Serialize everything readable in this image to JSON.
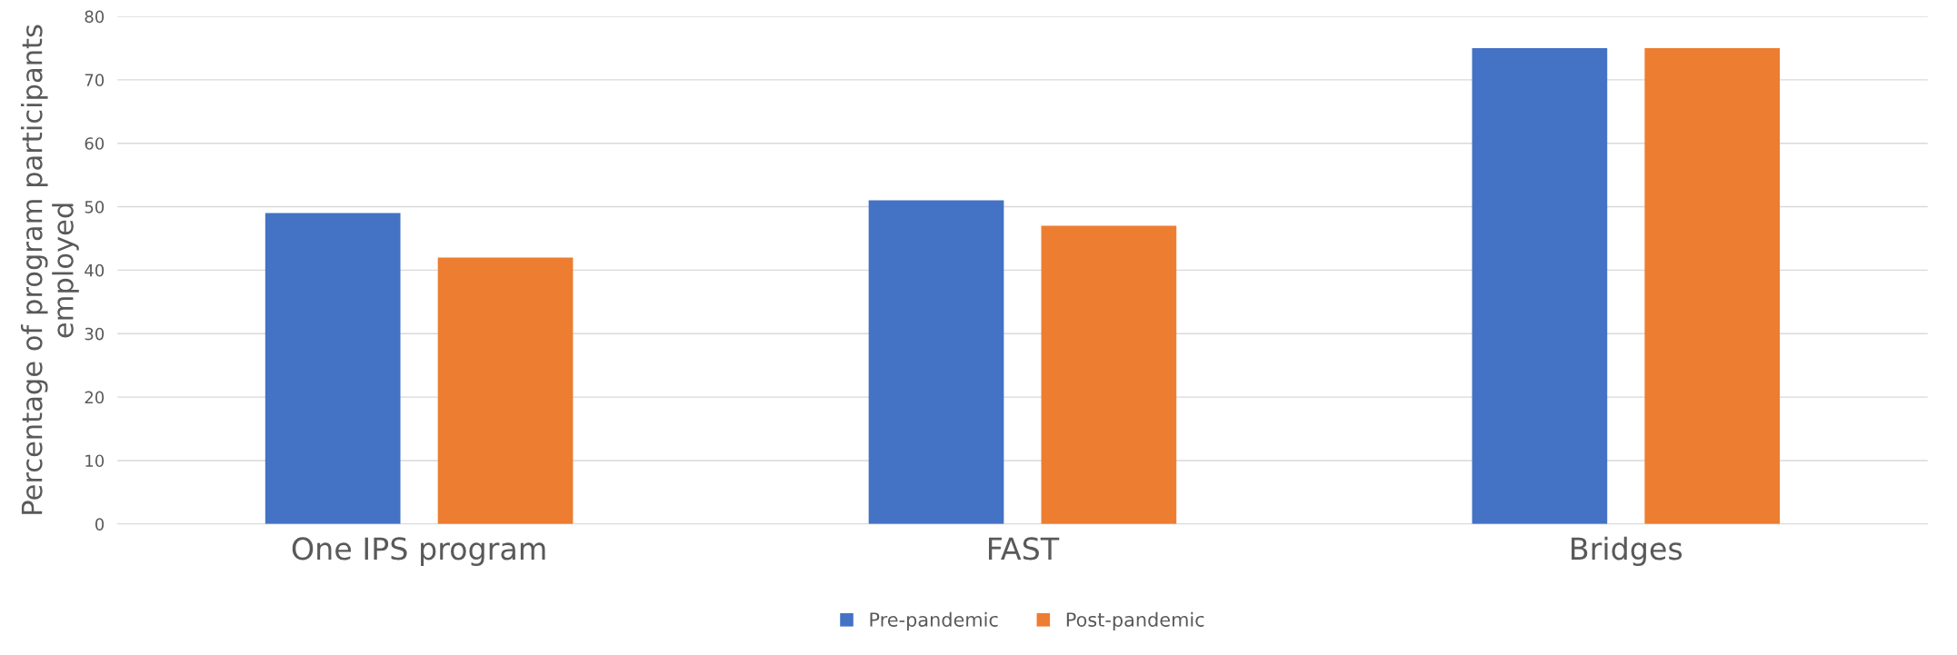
{
  "chart_data": {
    "type": "bar",
    "ylabel": "Percentage of program participants employed",
    "categories": [
      "One IPS program",
      "FAST",
      "Bridges"
    ],
    "series": [
      {
        "name": "Pre-pandemic",
        "color": "#4472c4",
        "values": [
          49,
          51,
          75
        ]
      },
      {
        "name": "Post-pandemic",
        "color": "#ed7d31",
        "values": [
          42,
          47,
          75
        ]
      }
    ],
    "ylim": [
      0,
      80
    ],
    "yticks": [
      0,
      10,
      20,
      30,
      40,
      50,
      60,
      70,
      80
    ],
    "grid": "y",
    "legend": "bottom"
  }
}
